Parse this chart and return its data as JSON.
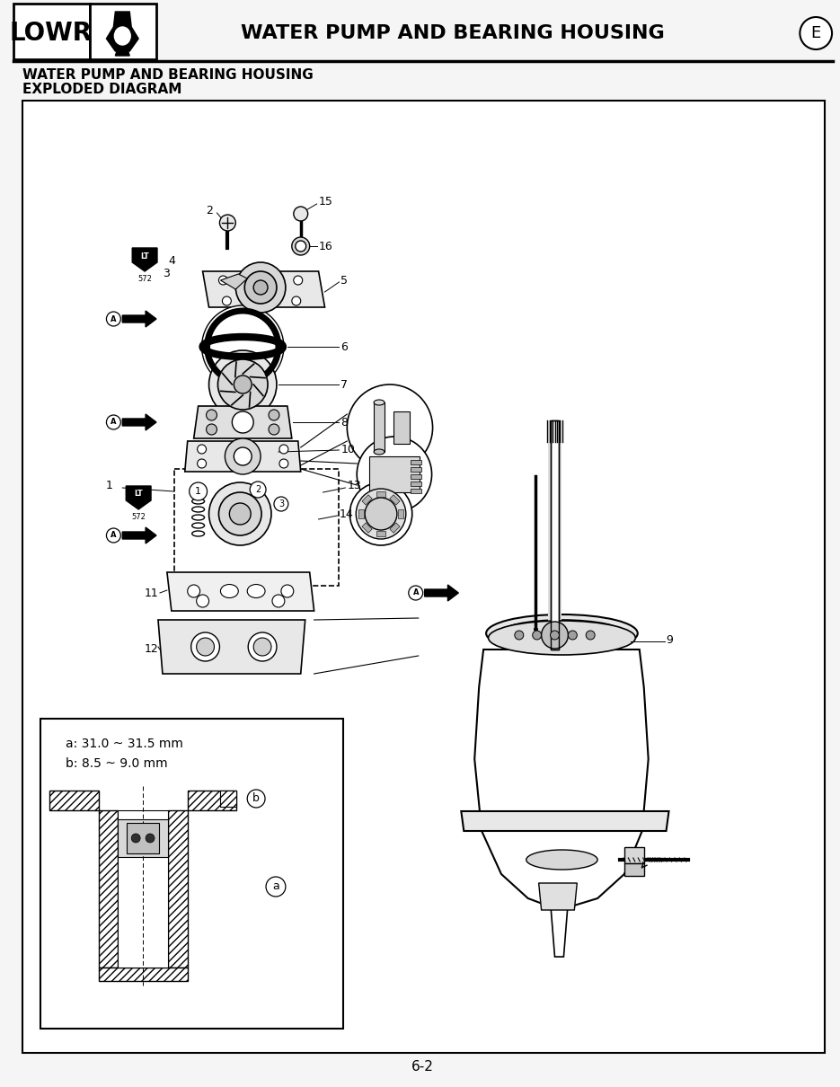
{
  "page_title_left": "LOWR",
  "page_title_center": "WATER PUMP AND BEARING HOUSING",
  "page_letter": "E",
  "subtitle1": "WATER PUMP AND BEARING HOUSING",
  "subtitle2": "EXPLODED DIAGRAM",
  "page_number": "6-2",
  "bg_color": "#f5f5f5",
  "dim_box_text1": "a: 31.0 ~ 31.5 mm",
  "dim_box_text2": "b: 8.5 ~ 9.0 mm"
}
